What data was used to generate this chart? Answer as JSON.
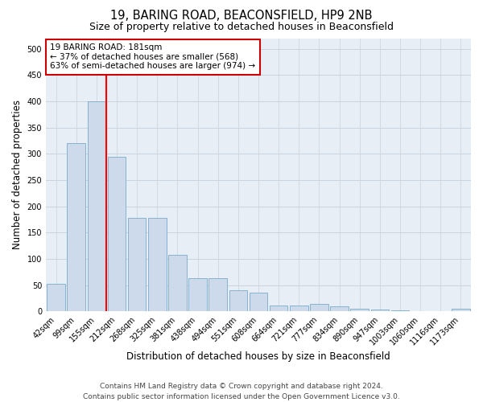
{
  "title": "19, BARING ROAD, BEACONSFIELD, HP9 2NB",
  "subtitle": "Size of property relative to detached houses in Beaconsfield",
  "xlabel": "Distribution of detached houses by size in Beaconsfield",
  "ylabel": "Number of detached properties",
  "footer_line1": "Contains HM Land Registry data © Crown copyright and database right 2024.",
  "footer_line2": "Contains public sector information licensed under the Open Government Licence v3.0.",
  "annotation_line1": "19 BARING ROAD: 181sqm",
  "annotation_line2": "← 37% of detached houses are smaller (568)",
  "annotation_line3": "63% of semi-detached houses are larger (974) →",
  "bar_labels": [
    "42sqm",
    "99sqm",
    "155sqm",
    "212sqm",
    "268sqm",
    "325sqm",
    "381sqm",
    "438sqm",
    "494sqm",
    "551sqm",
    "608sqm",
    "664sqm",
    "721sqm",
    "777sqm",
    "834sqm",
    "890sqm",
    "947sqm",
    "1003sqm",
    "1060sqm",
    "1116sqm",
    "1173sqm"
  ],
  "bar_values": [
    52,
    320,
    400,
    295,
    178,
    178,
    107,
    64,
    64,
    40,
    36,
    12,
    12,
    15,
    10,
    6,
    3,
    2,
    1,
    1,
    5
  ],
  "bar_color": "#ccdaeb",
  "bar_edge_color": "#7aaac8",
  "red_line_x": 2.5,
  "ylim": [
    0,
    520
  ],
  "yticks": [
    0,
    50,
    100,
    150,
    200,
    250,
    300,
    350,
    400,
    450,
    500
  ],
  "grid_color": "#c8d4e0",
  "plot_bg_color": "#e8eef5",
  "annotation_box_color": "#cc0000",
  "title_fontsize": 10.5,
  "subtitle_fontsize": 9,
  "axis_label_fontsize": 8.5,
  "tick_fontsize": 7,
  "footer_fontsize": 6.5,
  "annotation_fontsize": 7.5
}
